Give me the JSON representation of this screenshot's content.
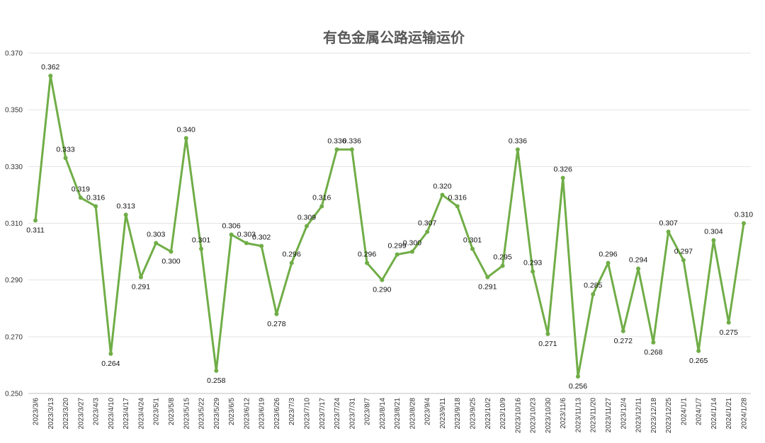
{
  "chart_data": {
    "type": "line",
    "title": "有色金属公路运输运价",
    "xlabel": "",
    "ylabel": "",
    "ylim": [
      0.25,
      0.37
    ],
    "yticks": [
      "0.250",
      "0.270",
      "0.290",
      "0.310",
      "0.330",
      "0.350",
      "0.370"
    ],
    "grid": true,
    "legend": "none",
    "line_color": "#70AD47",
    "categories": [
      "2023/3/6",
      "2023/3/13",
      "2023/3/20",
      "2023/3/27",
      "2023/4/3",
      "2023/4/10",
      "2023/4/17",
      "2023/4/24",
      "2023/5/1",
      "2023/5/8",
      "2023/5/15",
      "2023/5/22",
      "2023/5/29",
      "2023/6/5",
      "2023/6/12",
      "2023/6/19",
      "2023/6/26",
      "2023/7/3",
      "2023/7/10",
      "2023/7/17",
      "2023/7/24",
      "2023/7/31",
      "2023/8/7",
      "2023/8/14",
      "2023/8/21",
      "2023/8/28",
      "2023/9/4",
      "2023/9/11",
      "2023/9/18",
      "2023/9/25",
      "2023/10/2",
      "2023/10/9",
      "2023/10/16",
      "2023/10/23",
      "2023/10/30",
      "2023/11/6",
      "2023/11/13",
      "2023/11/20",
      "2023/11/27",
      "2023/12/4",
      "2023/12/11",
      "2023/12/18",
      "2023/12/25",
      "2024/1/1",
      "2024/1/7",
      "2024/1/14",
      "2024/1/21",
      "2024/1/28"
    ],
    "series": [
      {
        "values": [
          0.311,
          0.362,
          0.333,
          0.319,
          0.316,
          0.264,
          0.313,
          0.291,
          0.303,
          0.3,
          0.34,
          0.301,
          0.258,
          0.306,
          0.303,
          0.302,
          0.278,
          0.296,
          0.309,
          0.316,
          0.336,
          0.336,
          0.296,
          0.29,
          0.299,
          0.3,
          0.307,
          0.32,
          0.316,
          0.301,
          0.291,
          0.295,
          0.336,
          0.293,
          0.271,
          0.326,
          0.256,
          0.285,
          0.296,
          0.272,
          0.294,
          0.268,
          0.307,
          0.297,
          0.265,
          0.304,
          0.275,
          0.31
        ],
        "labels": [
          "0.311",
          "0.362",
          "0.333",
          "0.319",
          "0.316",
          "0.264",
          "0.313",
          "0.291",
          "0.303",
          "0.300",
          "0.340",
          "0.301",
          "0.258",
          "0.306",
          "0.303",
          "0.302",
          "0.278",
          "0.296",
          "0.309",
          "0.316",
          "0.336",
          "0.336",
          "0.296",
          "0.290",
          "0.299",
          "0.300",
          "0.307",
          "0.320",
          "0.316",
          "0.301",
          "0.291",
          "0.295",
          "0.336",
          "0.293",
          "0.271",
          "0.326",
          "0.256",
          "0.285",
          "0.296",
          "0.272",
          "0.294",
          "0.268",
          "0.307",
          "0.297",
          "0.265",
          "0.304",
          "0.275",
          "0.310"
        ]
      }
    ]
  }
}
